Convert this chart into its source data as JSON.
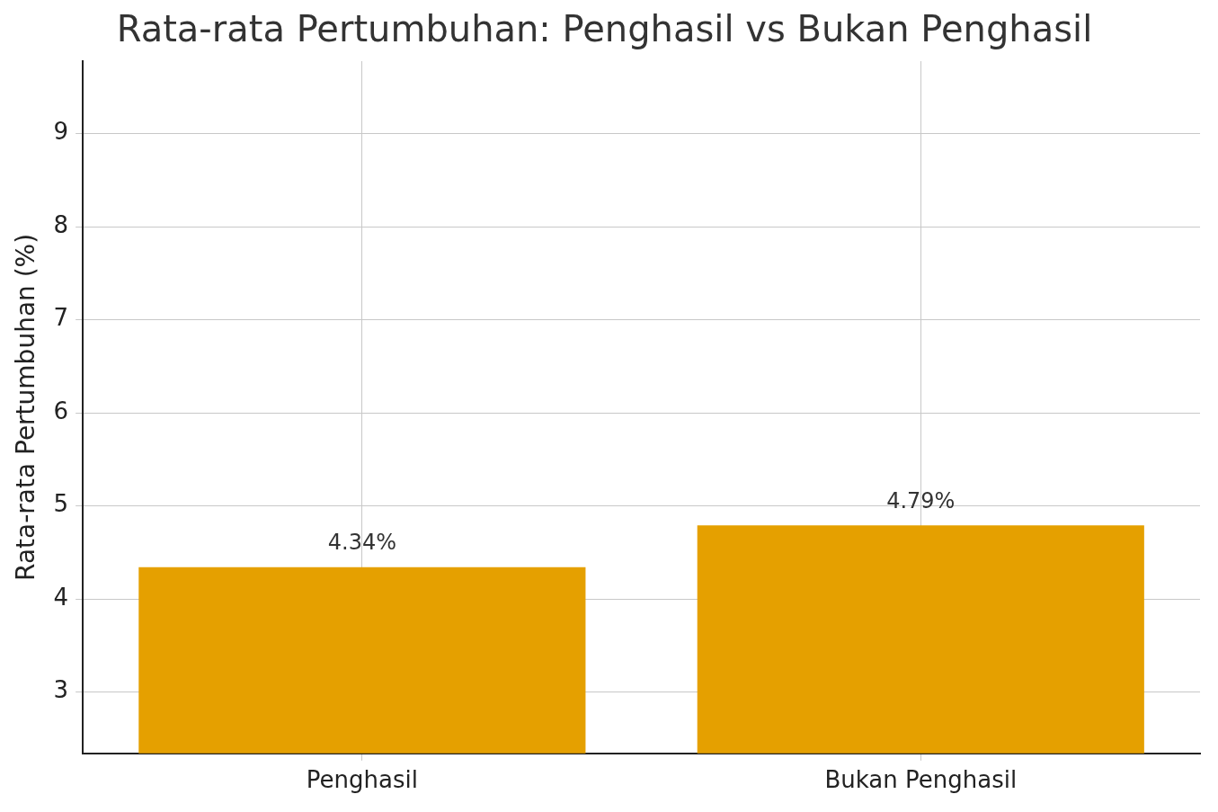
{
  "chart_data": {
    "type": "bar",
    "title": "Rata-rata Pertumbuhan: Penghasil vs Bukan Penghasil",
    "ylabel": "Rata-rata Pertumbuhan (%)",
    "categories": [
      "Penghasil",
      "Bukan Penghasil"
    ],
    "values": [
      4.34,
      4.79
    ],
    "value_labels": [
      "4.34%",
      "4.79%"
    ],
    "color": "#e5a000",
    "ylim": [
      2.34,
      9.78
    ],
    "yticks": [
      3,
      4,
      5,
      6,
      7,
      8,
      9
    ],
    "grid": true
  }
}
